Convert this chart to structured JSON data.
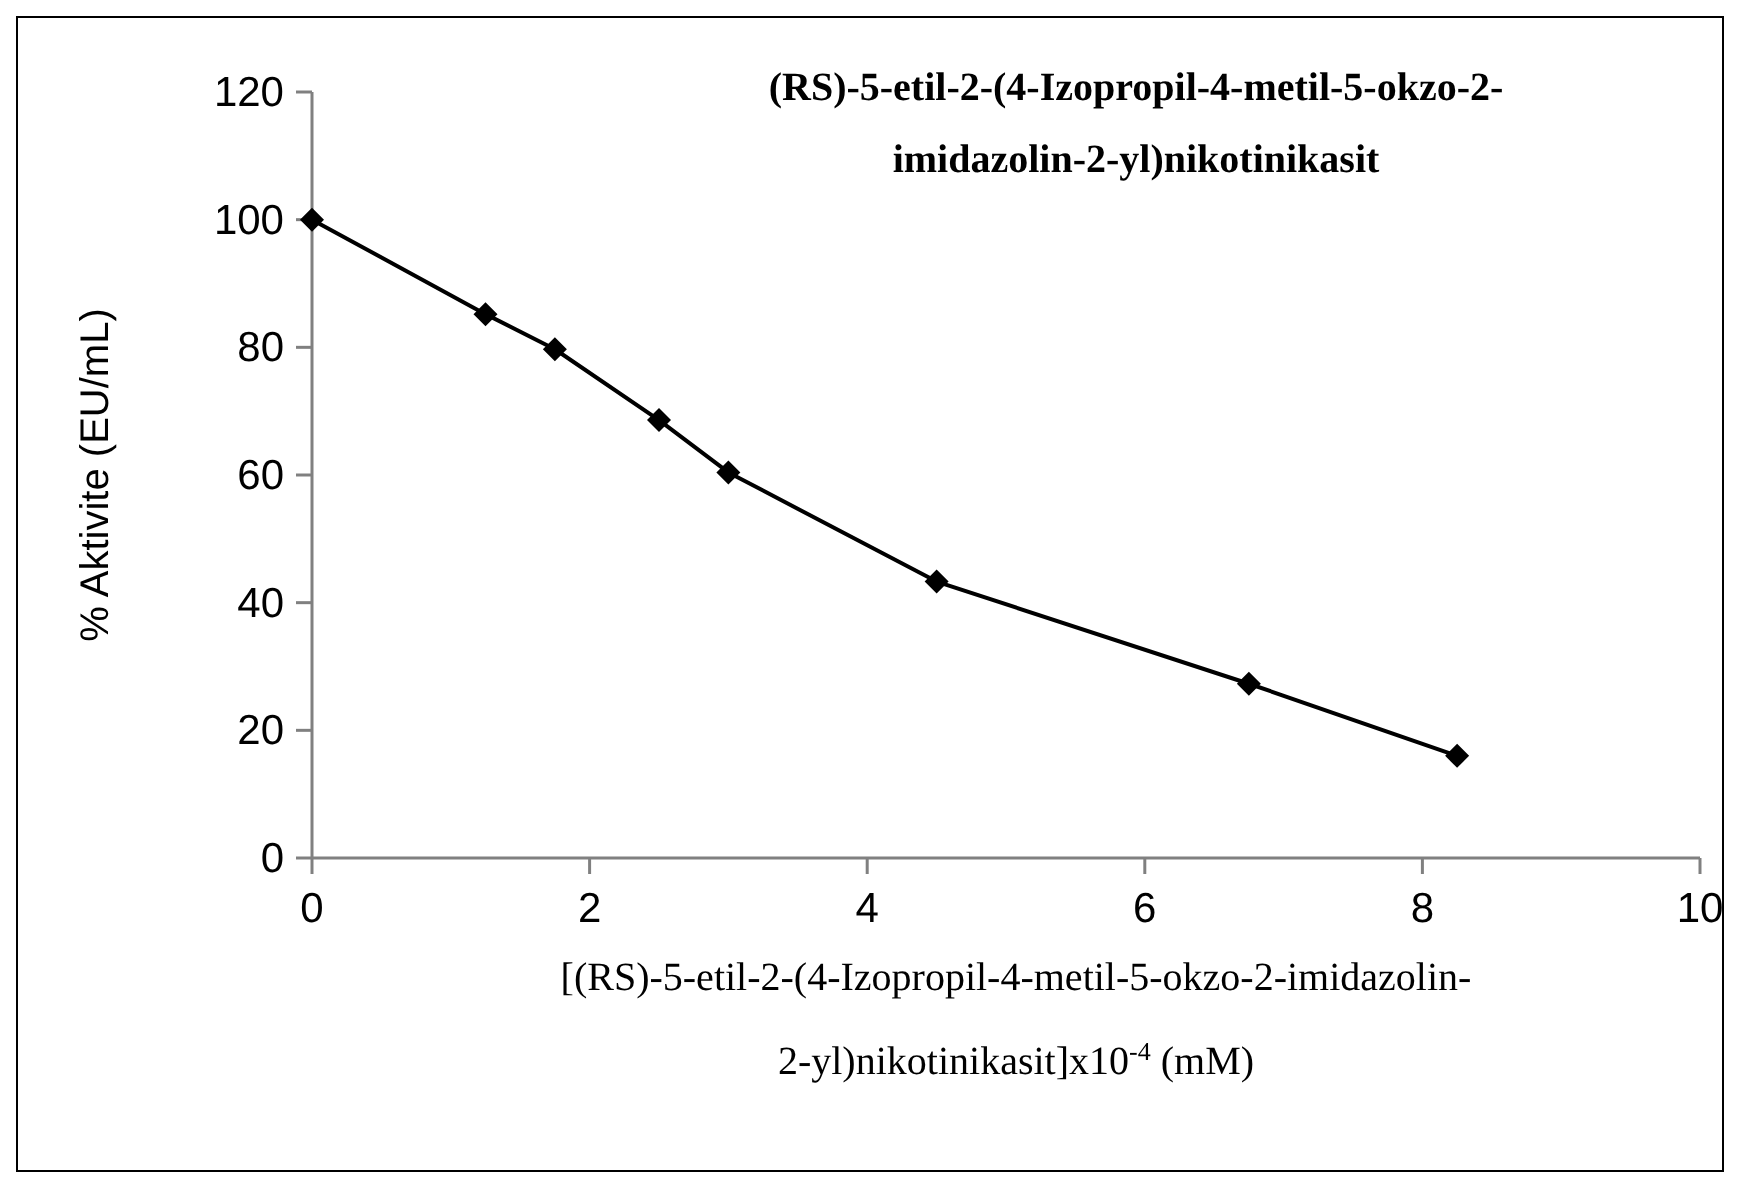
{
  "chart_data": {
    "type": "line",
    "title": "(RS)-5-etil-2-(4-Izopropil-4-metil-5-okzo-2-imidazolin-2-yl)nikotinikasit",
    "xlabel": "[(RS)-5-etil-2-(4-Izopropil-4-metil-5-okzo-2-imidazolin-2-yl)nikotinikasit]x10$^{-4}$ (mM)",
    "ylabel": "% Aktivite (EU/mL)",
    "x": [
      0,
      1.25,
      1.75,
      2.5,
      3,
      4.5,
      6.75,
      8.25
    ],
    "series": [
      {
        "color": "#000000",
        "values": [
          100,
          85.2,
          79.7,
          68.6,
          60.4,
          43.3,
          27.3,
          16
        ]
      }
    ],
    "xlim": [
      0,
      10
    ],
    "xticks": [
      0,
      2,
      4,
      6,
      8,
      10
    ],
    "ylim": [
      0,
      120
    ],
    "yticks": [
      0,
      20,
      40,
      60,
      80,
      100,
      120
    ],
    "marker": "diamond",
    "line_style": "solid"
  }
}
